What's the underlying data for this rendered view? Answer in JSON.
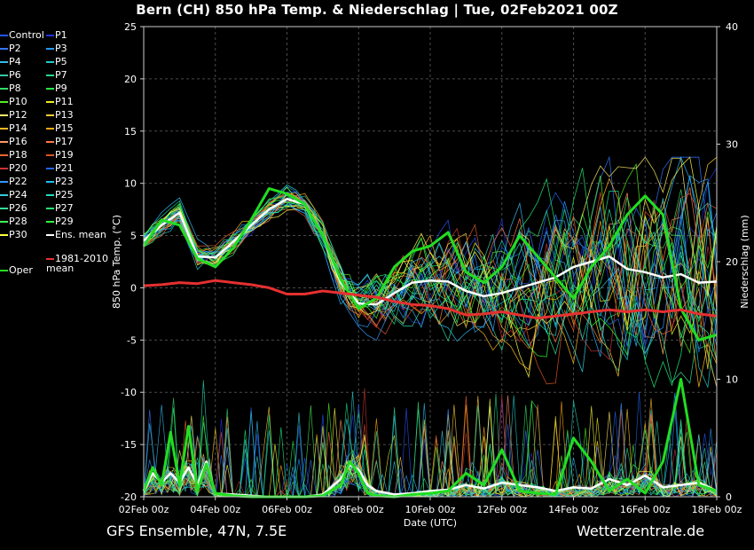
{
  "title": "Bern  (CH)  850 hPa Temp. & Niederschlag | Tue, 02Feb2021 00Z",
  "footer": {
    "model": "GFS Ensemble, 47N, 7.5E",
    "source": "Wetterzentrale.de"
  },
  "colors": {
    "background": "#000000",
    "grid": "#444444",
    "ens_mean": "#ffffff",
    "oper": "#22dd22",
    "climate": "#e53030"
  },
  "legend": {
    "members": [
      {
        "name": "Control",
        "color": "#2255ff"
      },
      {
        "name": "P1",
        "color": "#2233dd"
      },
      {
        "name": "P2",
        "color": "#3377ff"
      },
      {
        "name": "P3",
        "color": "#2299ff"
      },
      {
        "name": "P4",
        "color": "#33bbee"
      },
      {
        "name": "P5",
        "color": "#22cccc"
      },
      {
        "name": "P6",
        "color": "#33ccaa"
      },
      {
        "name": "P7",
        "color": "#22dd88"
      },
      {
        "name": "P8",
        "color": "#33dd66"
      },
      {
        "name": "P9",
        "color": "#22ee44"
      },
      {
        "name": "P10",
        "color": "#55ee22"
      },
      {
        "name": "P11",
        "color": "#eeee22"
      },
      {
        "name": "P12",
        "color": "#ffee66"
      },
      {
        "name": "P13",
        "color": "#ffcc33"
      },
      {
        "name": "P14",
        "color": "#ffbb22"
      },
      {
        "name": "P15",
        "color": "#ffaa11"
      },
      {
        "name": "P16",
        "color": "#ff9966"
      },
      {
        "name": "P17",
        "color": "#ff7744"
      },
      {
        "name": "P18",
        "color": "#ee6633"
      },
      {
        "name": "P19",
        "color": "#dd5522"
      },
      {
        "name": "P20",
        "color": "#cc3333"
      },
      {
        "name": "P21",
        "color": "#2266ee"
      },
      {
        "name": "P22",
        "color": "#3399ff"
      },
      {
        "name": "P23",
        "color": "#22bbff"
      },
      {
        "name": "P24",
        "color": "#33ccdd"
      },
      {
        "name": "P25",
        "color": "#22ddbb"
      },
      {
        "name": "P26",
        "color": "#33dd99"
      },
      {
        "name": "P27",
        "color": "#22ee77"
      },
      {
        "name": "P28",
        "color": "#44ee55"
      },
      {
        "name": "P29",
        "color": "#33ff33"
      },
      {
        "name": "P30",
        "color": "#ffff44"
      }
    ],
    "ens_mean": "Ens. mean",
    "oper": "Oper",
    "climate": "1981-2010 mean"
  },
  "chart_data": {
    "type": "line",
    "title": "Bern  (CH)  850 hPa Temp. & Niederschlag | Tue, 02Feb2021 00Z",
    "xlabel": "Date (UTC)",
    "ylabel": "850 hPa Temp. (°C)",
    "y2label": "Niederschlag (mm)",
    "ylim": [
      -20,
      25
    ],
    "y2lim": [
      0,
      40
    ],
    "xlim": [
      0,
      16
    ],
    "x_unit": "days since 02Feb 00z",
    "x_ticks": [
      {
        "x": 0,
        "label": "02Feb 00z"
      },
      {
        "x": 2,
        "label": "04Feb 00z"
      },
      {
        "x": 4,
        "label": "06Feb 00z"
      },
      {
        "x": 6,
        "label": "08Feb 00z"
      },
      {
        "x": 8,
        "label": "10Feb 00z"
      },
      {
        "x": 10,
        "label": "12Feb 00z"
      },
      {
        "x": 12,
        "label": "14Feb 00z"
      },
      {
        "x": 14,
        "label": "16Feb 00z"
      },
      {
        "x": 16,
        "label": "18Feb 00z"
      }
    ],
    "y_ticks": [
      -20,
      -15,
      -10,
      -5,
      0,
      5,
      10,
      15,
      20,
      25
    ],
    "y2_ticks": [
      0,
      10,
      20,
      30,
      40
    ],
    "grid": true,
    "series": [
      {
        "name": "Ens. mean",
        "axis": "temp",
        "color": "#ffffff",
        "x": [
          0,
          0.5,
          1,
          1.5,
          2,
          2.5,
          3,
          3.5,
          4,
          4.5,
          5,
          5.5,
          6,
          6.5,
          7,
          7.5,
          8,
          8.5,
          9,
          9.5,
          10,
          10.5,
          11,
          11.5,
          12,
          12.5,
          13,
          13.5,
          14,
          14.5,
          15,
          15.5,
          16
        ],
        "values": [
          4.5,
          6,
          7.2,
          3,
          2.9,
          4.4,
          6,
          7.5,
          8.5,
          8,
          5,
          0.5,
          -1.5,
          -1.6,
          -0.5,
          0.5,
          0.7,
          0.6,
          -0.3,
          -0.8,
          -0.5,
          0,
          0.5,
          1,
          2,
          2.5,
          3,
          1.8,
          1.5,
          1,
          1.3,
          0.5,
          0.6
        ]
      },
      {
        "name": "Oper",
        "axis": "temp",
        "color": "#22dd22",
        "x": [
          0,
          0.5,
          1,
          1.5,
          2,
          2.5,
          3,
          3.5,
          4,
          4.5,
          5,
          5.5,
          6,
          6.5,
          7,
          7.5,
          8,
          8.5,
          9,
          9.5,
          10,
          10.5,
          11,
          11.5,
          12,
          12.5,
          13,
          13.5,
          14,
          14.5,
          15,
          15.5,
          16
        ],
        "values": [
          4,
          6.5,
          6,
          2.8,
          2,
          3.8,
          6.5,
          9.5,
          9,
          8,
          5,
          0.8,
          -2,
          -1,
          2,
          3.5,
          4,
          5.3,
          1.5,
          0.5,
          2,
          5,
          3,
          1,
          -1,
          2,
          4,
          7,
          8.8,
          7,
          -2,
          -5,
          -4.5
        ]
      },
      {
        "name": "1981-2010 mean",
        "axis": "temp",
        "color": "#e53030",
        "x": [
          0,
          0.5,
          1,
          1.5,
          2,
          2.5,
          3,
          3.5,
          4,
          4.5,
          5,
          5.5,
          6,
          6.5,
          7,
          7.5,
          8,
          8.5,
          9,
          9.5,
          10,
          10.5,
          11,
          11.5,
          12,
          12.5,
          13,
          13.5,
          14,
          14.5,
          15,
          15.5,
          16
        ],
        "values": [
          0.2,
          0.3,
          0.5,
          0.4,
          0.7,
          0.5,
          0.3,
          0,
          -0.6,
          -0.6,
          -0.3,
          -0.5,
          -0.7,
          -0.9,
          -1.3,
          -1.6,
          -1.7,
          -2,
          -2.6,
          -2.5,
          -2.3,
          -2.6,
          -2.9,
          -2.7,
          -2.5,
          -2.3,
          -2.1,
          -2.3,
          -2.1,
          -2.3,
          -2.1,
          -2.5,
          -2.7
        ]
      },
      {
        "name": "Ens. mean precip",
        "axis": "precip",
        "color": "#ffffff",
        "x": [
          0,
          0.25,
          0.5,
          0.75,
          1,
          1.25,
          1.5,
          1.75,
          2,
          2.5,
          3,
          3.5,
          4,
          4.5,
          5,
          5.5,
          5.75,
          6,
          6.25,
          6.5,
          7,
          7.5,
          8,
          8.5,
          9,
          9.5,
          10,
          10.5,
          11,
          11.5,
          12,
          12.5,
          13,
          13.5,
          14,
          14.5,
          15,
          15.5,
          16
        ],
        "values": [
          0.5,
          2,
          1.2,
          2,
          1.2,
          2.5,
          1,
          3,
          0.3,
          0.2,
          0.1,
          0,
          0,
          0,
          0.2,
          1.5,
          2.7,
          2.3,
          1,
          0.5,
          0.2,
          0.3,
          0.5,
          0.6,
          1,
          0.7,
          1.2,
          1,
          0.8,
          0.5,
          0.8,
          0.7,
          1.5,
          1,
          1.8,
          0.8,
          1,
          1.2,
          0.5
        ]
      },
      {
        "name": "Oper precip",
        "axis": "precip",
        "color": "#22dd22",
        "x": [
          0,
          0.25,
          0.5,
          0.75,
          1,
          1.25,
          1.5,
          1.75,
          2,
          2.5,
          3,
          3.5,
          4,
          4.5,
          5,
          5.5,
          5.75,
          6,
          6.25,
          6.5,
          7,
          7.5,
          8,
          8.5,
          9,
          9.5,
          10,
          10.5,
          11,
          11.5,
          12,
          12.5,
          13,
          13.5,
          14,
          14.5,
          15,
          15.5,
          16
        ],
        "values": [
          0.5,
          2.5,
          1,
          5.5,
          1,
          6,
          0.5,
          2.8,
          0.3,
          0.1,
          0,
          0,
          0,
          0,
          0.1,
          1,
          3,
          2,
          0.3,
          0.1,
          0,
          0.2,
          0.3,
          0.5,
          2,
          1,
          4,
          0.5,
          0.3,
          0.2,
          5,
          3,
          0.5,
          1.5,
          0.3,
          3,
          10,
          1,
          0.5
        ]
      }
    ],
    "annotations": [
      "Ens. mean",
      "Oper",
      "1981-2010 mean"
    ]
  }
}
